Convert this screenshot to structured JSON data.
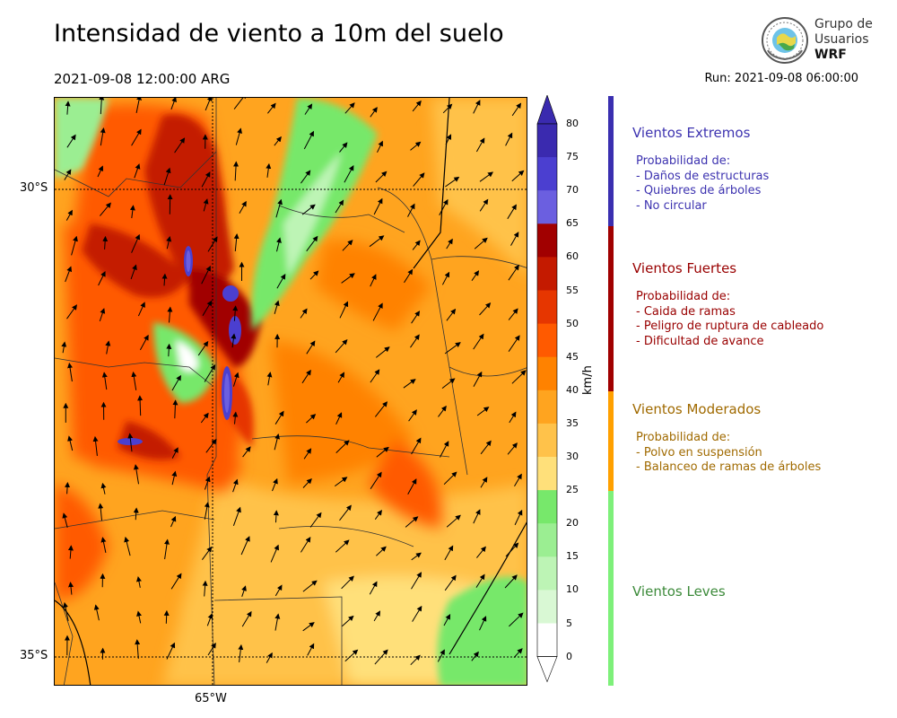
{
  "header": {
    "title": "Intensidad de viento a 10m del suelo",
    "valid_time": "2021-09-08 12:00:00 ARG",
    "run_time": "Run: 2021-09-08 06:00:00"
  },
  "logo": {
    "line1": "Grupo de",
    "line2": "Usuarios",
    "line3": "WRF"
  },
  "map": {
    "lat_labels": [
      "30°S",
      "35°S"
    ],
    "lon_labels": [
      "65°W"
    ]
  },
  "colorbar": {
    "label": "km/h",
    "ticks": [
      "80",
      "75",
      "70",
      "65",
      "60",
      "55",
      "50",
      "45",
      "40",
      "35",
      "30",
      "25",
      "20",
      "15",
      "10",
      "5",
      "0"
    ],
    "colors": {
      "0-5": "#ffffff",
      "5-10": "#d9f8d4",
      "10-15": "#bdf4b5",
      "15-20": "#9bee92",
      "20-25": "#77e86b",
      "25-30": "#ffe07a",
      "30-35": "#ffc24a",
      "35-40": "#ffa41f",
      "40-45": "#ff8200",
      "45-50": "#ff5a00",
      "50-55": "#e63600",
      "55-60": "#c41a00",
      "60-65": "#a10000",
      "65-70": "#6b5fe0",
      "70-75": "#4b3fd0",
      "75-80": "#3a2aaf"
    }
  },
  "legend": {
    "categories": [
      {
        "title": "Vientos Extremos",
        "color": "#3d33b0",
        "items": [
          "Probabilidad de:",
          "- Daños de estructuras",
          "- Quiebres de árboles",
          "- No circular"
        ]
      },
      {
        "title": "Vientos Fuertes",
        "color": "#990000",
        "items": [
          "Probabilidad de:",
          "- Caida de ramas",
          "- Peligro de ruptura de cableado",
          "- Dificultad de avance"
        ]
      },
      {
        "title": "Vientos Moderados",
        "color": "#a06a00",
        "items": [
          "Probabilidad de:",
          "- Polvo en suspensión",
          "- Balanceo de ramas de árboles"
        ]
      },
      {
        "title": "Vientos Leves",
        "color": "#3c8a3a",
        "items": []
      }
    ],
    "strip_colors": [
      "#3a2fb0",
      "#a00000",
      "#ffa000",
      "#7ef07a"
    ]
  }
}
